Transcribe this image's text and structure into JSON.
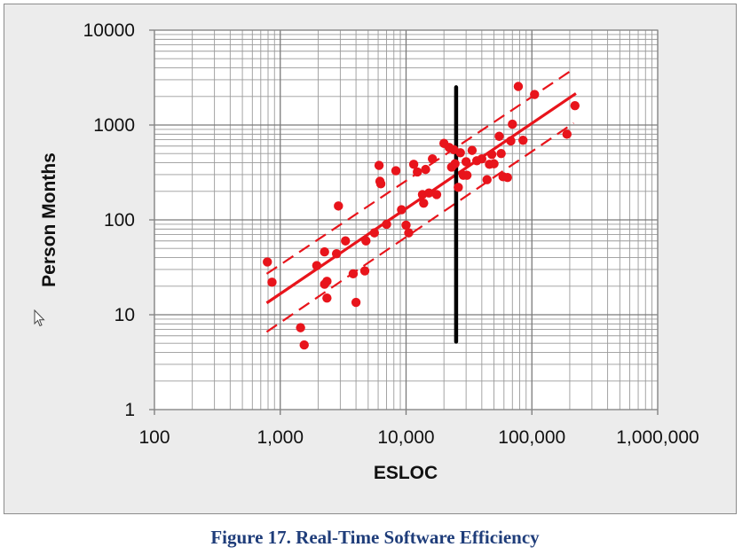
{
  "caption": "Figure 17. Real-Time Software Efficiency",
  "chart_data": {
    "type": "scatter",
    "title": "",
    "xlabel": "ESLOC",
    "ylabel": "Person Months",
    "x_scale": "log",
    "y_scale": "log",
    "xlim": [
      100,
      1000000
    ],
    "ylim": [
      1,
      10000
    ],
    "grid": true,
    "x_tick_labels": [
      "100",
      "1,000",
      "10,000",
      "100,000",
      "1,000,000"
    ],
    "y_tick_labels": [
      "1",
      "10",
      "100",
      "1000",
      "10000"
    ],
    "colors": {
      "points": "#e8141b",
      "fit": "#e8141b",
      "bounds": "#e8141b",
      "vertical_marker": "#000000",
      "grid": "#9a9a9a",
      "plot_bg": "#ffffff",
      "frame_bg": "#ececec"
    },
    "series": [
      {
        "kind": "points",
        "values": [
          [
            790,
            36
          ],
          [
            860,
            22
          ],
          [
            1450,
            7.3
          ],
          [
            1550,
            4.8
          ],
          [
            1950,
            33
          ],
          [
            2250,
            46
          ],
          [
            2250,
            21
          ],
          [
            2350,
            22.5
          ],
          [
            2350,
            15
          ],
          [
            2800,
            44
          ],
          [
            2900,
            140
          ],
          [
            3300,
            60
          ],
          [
            3800,
            27
          ],
          [
            4000,
            13.5
          ],
          [
            4700,
            29
          ],
          [
            4800,
            60
          ],
          [
            5600,
            73
          ],
          [
            6100,
            375
          ],
          [
            6200,
            255
          ],
          [
            6300,
            240
          ],
          [
            7000,
            90
          ],
          [
            8300,
            330
          ],
          [
            9200,
            128
          ],
          [
            10000,
            88
          ],
          [
            10500,
            73
          ],
          [
            11500,
            385
          ],
          [
            12300,
            320
          ],
          [
            13500,
            185
          ],
          [
            13800,
            150
          ],
          [
            14300,
            340
          ],
          [
            15200,
            192
          ],
          [
            16200,
            440
          ],
          [
            17500,
            185
          ],
          [
            20000,
            640
          ],
          [
            22000,
            580
          ],
          [
            23000,
            360
          ],
          [
            24000,
            550
          ],
          [
            24500,
            390
          ],
          [
            26000,
            220
          ],
          [
            27000,
            510
          ],
          [
            28500,
            295
          ],
          [
            30000,
            410
          ],
          [
            30500,
            295
          ],
          [
            33500,
            540
          ],
          [
            36500,
            420
          ],
          [
            40000,
            440
          ],
          [
            44000,
            265
          ],
          [
            46000,
            385
          ],
          [
            48000,
            490
          ],
          [
            50000,
            390
          ],
          [
            55000,
            760
          ],
          [
            57000,
            500
          ],
          [
            59000,
            285
          ],
          [
            64000,
            280
          ],
          [
            68000,
            680
          ],
          [
            70000,
            1020
          ],
          [
            78000,
            2550
          ],
          [
            85000,
            690
          ],
          [
            105000,
            2100
          ],
          [
            190000,
            800
          ],
          [
            220000,
            1600
          ]
        ]
      },
      {
        "kind": "fit-line",
        "values": [
          [
            780,
            13.3
          ],
          [
            224000,
            2150
          ]
        ]
      },
      {
        "kind": "upper-bound",
        "values": [
          [
            780,
            27
          ],
          [
            215000,
            3900
          ]
        ]
      },
      {
        "kind": "lower-bound",
        "values": [
          [
            780,
            6.6
          ],
          [
            215000,
            1050
          ]
        ]
      },
      {
        "kind": "vertical-marker",
        "x": 25000,
        "y_range": [
          5.2,
          2500
        ]
      }
    ]
  }
}
